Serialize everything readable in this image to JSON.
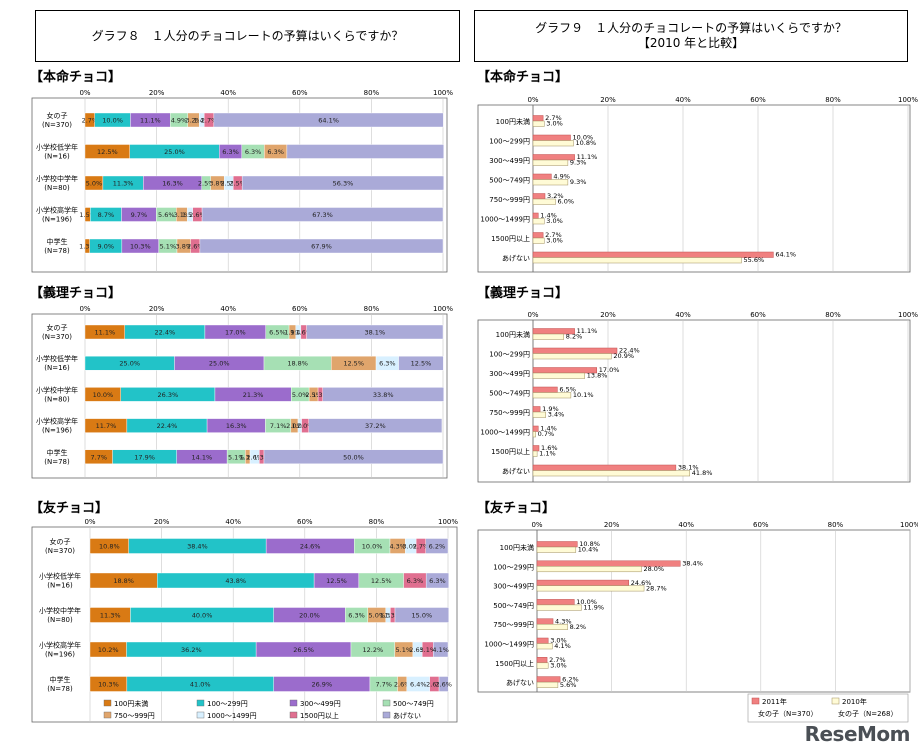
{
  "graph8": {
    "title": "グラフ８　１人分のチョコレートの予算はいくらですか？"
  },
  "graph9": {
    "title_line1": "グラフ９　１人分のチョコレートの予算はいくらですか？",
    "title_line2": "【2010 年と比較】"
  },
  "sections": {
    "honmei": "【本命チョコ】",
    "giri": "【義理チョコ】",
    "tomo": "【友チョコ】"
  },
  "brand": "ReseMom",
  "chart_data": [
    {
      "id": "g8-honmei",
      "type": "bar",
      "orientation": "horizontal",
      "stacked": true,
      "xlim": [
        0,
        100
      ],
      "xticks": [
        "0%",
        "20%",
        "40%",
        "60%",
        "80%",
        "100%"
      ],
      "categories": [
        [
          "女の子",
          "(N=370)"
        ],
        [
          "小学校低学年",
          "(N=16)"
        ],
        [
          "小学校中学年",
          "(N=80)"
        ],
        [
          "小学校高学年",
          "(N=196)"
        ],
        [
          "中学生",
          "(N=78)"
        ]
      ],
      "series_names": [
        "100円未満",
        "100～299円",
        "300～499円",
        "500～749円",
        "750～999円",
        "1000～1499円",
        "1500円以上",
        "あげない"
      ],
      "values": [
        [
          2.7,
          10.0,
          11.1,
          4.9,
          3.2,
          1.4,
          2.7,
          64.1
        ],
        [
          12.5,
          25.0,
          6.3,
          6.3,
          6.3,
          0,
          0,
          43.8
        ],
        [
          5.0,
          11.3,
          16.3,
          2.5,
          3.8,
          2.5,
          2.5,
          56.3
        ],
        [
          1.5,
          8.7,
          9.7,
          5.6,
          3.1,
          1.5,
          2.6,
          67.3
        ],
        [
          1.3,
          9.0,
          10.3,
          5.1,
          3.8,
          0,
          2.6,
          67.9
        ]
      ],
      "labels": [
        [
          "2.7%",
          "10.0%",
          "11.1%",
          "4.9%",
          "3.2%",
          "1.4%",
          "2.7%",
          "64.1%"
        ],
        [
          "12.5%",
          "25.0%",
          "6.3%",
          "6.3%",
          "6.3%",
          "",
          "",
          ""
        ],
        [
          "5.0%",
          "11.3%",
          "16.3%",
          "2.5%",
          "3.8%",
          "2.5%",
          "2.5%",
          "56.3%"
        ],
        [
          "1.5%",
          "8.7%",
          "9.7%",
          "5.6%",
          "3.1%",
          "1.5%",
          "2.6%",
          "67.3%"
        ],
        [
          "1.3%",
          "9.0%",
          "10.3%",
          "5.1%",
          "3.8%",
          "",
          "2.6%",
          "67.9%"
        ]
      ]
    },
    {
      "id": "g8-giri",
      "type": "bar",
      "orientation": "horizontal",
      "stacked": true,
      "xlim": [
        0,
        100
      ],
      "xticks": [
        "0%",
        "20%",
        "40%",
        "60%",
        "80%",
        "100%"
      ],
      "categories": [
        [
          "女の子",
          "(N=370)"
        ],
        [
          "小学校低学年",
          "(N=16)"
        ],
        [
          "小学校中学年",
          "(N=80)"
        ],
        [
          "小学校高学年",
          "(N=196)"
        ],
        [
          "中学生",
          "(N=78)"
        ]
      ],
      "series_names": [
        "100円未満",
        "100～299円",
        "300～499円",
        "500～749円",
        "750～999円",
        "1000～1499円",
        "1500円以上",
        "あげない"
      ],
      "values": [
        [
          11.1,
          22.4,
          17.0,
          6.5,
          1.9,
          1.4,
          1.6,
          38.1
        ],
        [
          0,
          25.0,
          25.0,
          18.8,
          12.5,
          6.3,
          0,
          12.5
        ],
        [
          10.0,
          26.3,
          21.3,
          5.0,
          2.5,
          0,
          1.3,
          33.8
        ],
        [
          11.7,
          22.4,
          16.3,
          7.1,
          2.0,
          1.0,
          2.0,
          37.2
        ],
        [
          7.7,
          17.9,
          14.1,
          5.1,
          1.3,
          2.6,
          1.3,
          50.0
        ]
      ],
      "labels": [
        [
          "11.1%",
          "22.4%",
          "17.0%",
          "6.5%",
          "1.9%",
          "1.4%",
          "1.6%",
          "38.1%"
        ],
        [
          "",
          "25.0%",
          "25.0%",
          "18.8%",
          "12.5%",
          "6.3%",
          "",
          "12.5%"
        ],
        [
          "10.0%",
          "26.3%",
          "21.3%",
          "5.0%",
          "2.5%",
          "",
          "1.3%",
          "33.8%"
        ],
        [
          "11.7%",
          "22.4%",
          "16.3%",
          "7.1%",
          "2.0%",
          "1.0%",
          "2.0%",
          "37.2%"
        ],
        [
          "7.7%",
          "17.9%",
          "14.1%",
          "5.1%",
          "1.3%",
          "2.6%",
          "1.3%",
          "50.0%"
        ]
      ]
    },
    {
      "id": "g8-tomo",
      "type": "bar",
      "orientation": "horizontal",
      "stacked": true,
      "xlim": [
        0,
        100
      ],
      "xticks": [
        "0%",
        "20%",
        "40%",
        "60%",
        "80%",
        "100%"
      ],
      "categories": [
        [
          "女の子",
          "(N=370)"
        ],
        [
          "小学校低学年",
          "(N=16)"
        ],
        [
          "小学校中学年",
          "(N=80)"
        ],
        [
          "小学校高学年",
          "(N=196)"
        ],
        [
          "中学生",
          "(N=78)"
        ]
      ],
      "series_names": [
        "100円未満",
        "100～299円",
        "300～499円",
        "500～749円",
        "750～999円",
        "1000～1499円",
        "1500円以上",
        "あげない"
      ],
      "values": [
        [
          10.8,
          38.4,
          24.6,
          10.0,
          4.3,
          3.0,
          2.7,
          6.2
        ],
        [
          18.8,
          43.8,
          12.5,
          12.5,
          0,
          0,
          6.3,
          6.3
        ],
        [
          11.3,
          40.0,
          20.0,
          6.3,
          5.0,
          1.3,
          1.3,
          15.0
        ],
        [
          10.2,
          36.2,
          26.5,
          12.2,
          5.1,
          2.6,
          3.1,
          4.1
        ],
        [
          10.3,
          41.0,
          26.9,
          7.7,
          2.6,
          6.4,
          2.6,
          2.6
        ]
      ],
      "labels": [
        [
          "10.8%",
          "38.4%",
          "24.6%",
          "10.0%",
          "4.3%",
          "3.0%",
          "2.7%",
          "6.2%"
        ],
        [
          "18.8%",
          "43.8%",
          "12.5%",
          "12.5%",
          "",
          "",
          "6.3%",
          "6.3%"
        ],
        [
          "11.3%",
          "40.0%",
          "20.0%",
          "6.3%",
          "5.0%",
          "1.3%",
          "1.3%",
          "15.0%"
        ],
        [
          "10.2%",
          "36.2%",
          "26.5%",
          "12.2%",
          "5.1%",
          "2.6%",
          "3.1%",
          "4.1%"
        ],
        [
          "10.3%",
          "41.0%",
          "26.9%",
          "7.7%",
          "2.6%",
          "6.4%",
          "2.6%",
          "2.6%"
        ]
      ]
    },
    {
      "id": "g9-honmei",
      "type": "bar",
      "orientation": "horizontal",
      "xlim": [
        0,
        100
      ],
      "xticks": [
        "0%",
        "20%",
        "40%",
        "60%",
        "80%",
        "100%"
      ],
      "categories": [
        "100円未満",
        "100～299円",
        "300～499円",
        "500～749円",
        "750～999円",
        "1000～1499円",
        "1500円以上",
        "あげない"
      ],
      "series": [
        {
          "name": "2011年",
          "values": [
            2.7,
            10.0,
            11.1,
            4.9,
            3.2,
            1.4,
            2.7,
            64.1
          ]
        },
        {
          "name": "2010年",
          "values": [
            3.0,
            10.8,
            9.3,
            9.3,
            6.0,
            3.0,
            3.0,
            55.6
          ]
        }
      ]
    },
    {
      "id": "g9-giri",
      "type": "bar",
      "orientation": "horizontal",
      "xlim": [
        0,
        100
      ],
      "xticks": [
        "0%",
        "20%",
        "40%",
        "60%",
        "80%",
        "100%"
      ],
      "categories": [
        "100円未満",
        "100～299円",
        "300～499円",
        "500～749円",
        "750～999円",
        "1000～1499円",
        "1500円以上",
        "あげない"
      ],
      "series": [
        {
          "name": "2011年",
          "values": [
            11.1,
            22.4,
            17.0,
            6.5,
            1.9,
            1.4,
            1.6,
            38.1
          ]
        },
        {
          "name": "2010年",
          "values": [
            8.2,
            20.9,
            13.8,
            10.1,
            3.4,
            0.7,
            1.1,
            41.8
          ]
        }
      ]
    },
    {
      "id": "g9-tomo",
      "type": "bar",
      "orientation": "horizontal",
      "xlim": [
        0,
        100
      ],
      "xticks": [
        "0%",
        "20%",
        "40%",
        "60%",
        "80%",
        "100%"
      ],
      "categories": [
        "100円未満",
        "100～299円",
        "300～499円",
        "500～749円",
        "750～999円",
        "1000～1499円",
        "1500円以上",
        "あげない"
      ],
      "series": [
        {
          "name": "2011年",
          "values": [
            10.8,
            38.4,
            24.6,
            10.0,
            4.3,
            3.0,
            2.7,
            6.2
          ]
        },
        {
          "name": "2010年",
          "values": [
            10.4,
            28.0,
            28.7,
            11.9,
            8.2,
            4.1,
            3.0,
            5.6
          ]
        }
      ]
    }
  ],
  "legend8": [
    "100円未満",
    "100～299円",
    "300～499円",
    "500～749円",
    "750～999円",
    "1000～1499円",
    "1500円以上",
    "あげない"
  ],
  "legend9": [
    {
      "label": "2011年",
      "sub": "女の子（N=370）"
    },
    {
      "label": "2010年",
      "sub": "女の子（N=268）"
    }
  ],
  "colors": {
    "segments": [
      "#d97a14",
      "#22c3c8",
      "#9b6ccc",
      "#a6e0b4",
      "#e0a56c",
      "#d8f0ff",
      "#e06f90",
      "#aaaad8"
    ],
    "y2011": "#f08080",
    "y2010": "#fffbd6"
  }
}
